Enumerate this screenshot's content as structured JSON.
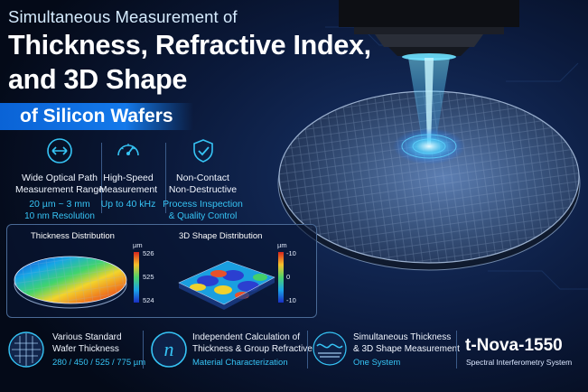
{
  "header": {
    "line1": "Simultaneous Measurement of",
    "line2": "Thickness, Refractive Index,",
    "line3": "and 3D Shape",
    "banner": "of Silicon Wafers"
  },
  "features": [
    {
      "icon": "arrows-icon",
      "label1": "Wide Optical Path",
      "label2": "Measurement Range",
      "value1": "20 µm ~ 3 mm",
      "value2": "10 nm Resolution"
    },
    {
      "icon": "speedometer-icon",
      "label1": "High-Speed",
      "label2": "Measurement",
      "value1": "Up to 40 kHz",
      "value2": ""
    },
    {
      "icon": "shield-check-icon",
      "label1": "Non-Contact",
      "label2": "Non-Destructive",
      "value1": "Process Inspection",
      "value2": "& Quality Control"
    }
  ],
  "panel": {
    "thickness": {
      "title": "Thickness Distribution",
      "unit": "µm",
      "ticks": [
        "526",
        "525",
        "524"
      ]
    },
    "shape": {
      "title": "3D Shape Distribution",
      "unit": "µm",
      "ticks": [
        "-10",
        "0",
        "-10"
      ]
    }
  },
  "bottom": [
    {
      "icon": "wafer-grid-icon",
      "label1": "Various Standard",
      "label2": "Wafer Thickness",
      "value": "280 / 450 / 525 / 775 µm"
    },
    {
      "icon": "n-index-icon",
      "label1": "Independent Calculation of",
      "label2": "Thickness & Group Refractive Index",
      "value": "Material Characterization"
    },
    {
      "icon": "wave-layers-icon",
      "label1": "Simultaneous Thickness",
      "label2": "& 3D Shape Measurement",
      "value": "One System"
    }
  ],
  "brand": {
    "name": "t-Nova-1550",
    "subtitle": "Spectral Interferometry System"
  },
  "colors": {
    "accent": "#36c4f5",
    "banner": "#0a63d6",
    "background": "#050d1f"
  }
}
